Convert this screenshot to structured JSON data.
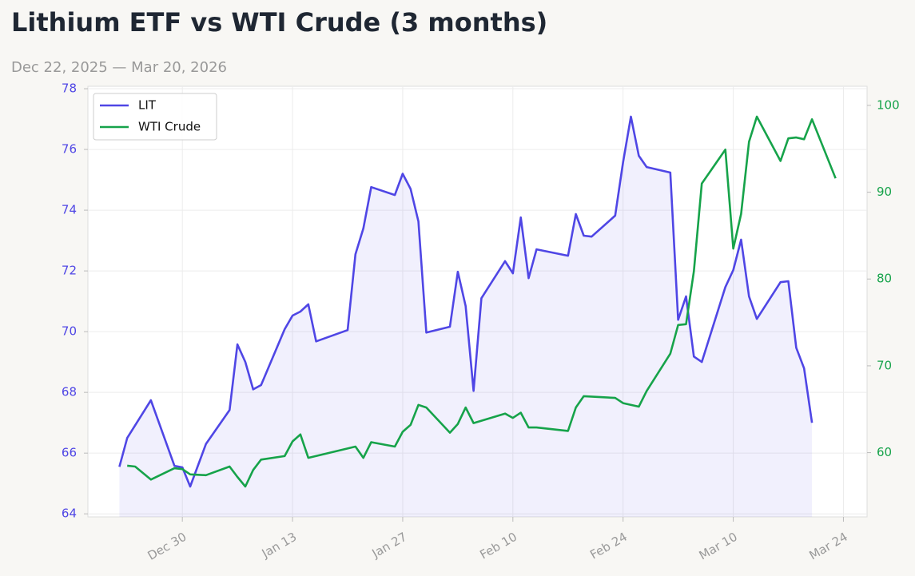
{
  "chart_data": {
    "type": "line",
    "title": "Lithium ETF vs WTI Crude (3 months)",
    "subtitle": "Dec 22, 2025 — Mar 20, 2026",
    "xlim": [
      "2025-12-18",
      "2026-03-27"
    ],
    "xticks": [
      {
        "value": "2025-12-30",
        "label": "Dec 30"
      },
      {
        "value": "2026-01-13",
        "label": "Jan 13"
      },
      {
        "value": "2026-01-27",
        "label": "Jan 27"
      },
      {
        "value": "2026-02-10",
        "label": "Feb 10"
      },
      {
        "value": "2026-02-24",
        "label": "Feb 24"
      },
      {
        "value": "2026-03-10",
        "label": "Mar 10"
      },
      {
        "value": "2026-03-24",
        "label": "Mar 24"
      }
    ],
    "ylim": [
      63.9,
      78.08
    ],
    "yticks": [
      64,
      66,
      68,
      70,
      72,
      74,
      76,
      78
    ],
    "y2lim": [
      52.6,
      102.2
    ],
    "y2ticks": [
      60,
      70,
      80,
      90,
      100
    ],
    "grid": true,
    "legend": "upper left",
    "series": [
      {
        "name": "LIT",
        "color": "#4f46e5",
        "area": true,
        "x": [
          "2025-12-22",
          "2025-12-23",
          "2025-12-26",
          "2025-12-29",
          "2025-12-30",
          "2025-12-31",
          "2026-01-02",
          "2026-01-05",
          "2026-01-06",
          "2026-01-07",
          "2026-01-08",
          "2026-01-09",
          "2026-01-12",
          "2026-01-13",
          "2026-01-14",
          "2026-01-15",
          "2026-01-16",
          "2026-01-20",
          "2026-01-21",
          "2026-01-22",
          "2026-01-23",
          "2026-01-26",
          "2026-01-27",
          "2026-01-28",
          "2026-01-29",
          "2026-01-30",
          "2026-02-02",
          "2026-02-03",
          "2026-02-04",
          "2026-02-05",
          "2026-02-06",
          "2026-02-09",
          "2026-02-10",
          "2026-02-11",
          "2026-02-12",
          "2026-02-13",
          "2026-02-17",
          "2026-02-18",
          "2026-02-19",
          "2026-02-20",
          "2026-02-23",
          "2026-02-24",
          "2026-02-25",
          "2026-02-26",
          "2026-02-27",
          "2026-03-02",
          "2026-03-03",
          "2026-03-04",
          "2026-03-05",
          "2026-03-06",
          "2026-03-09",
          "2026-03-10",
          "2026-03-11",
          "2026-03-12",
          "2026-03-13",
          "2026-03-16",
          "2026-03-17",
          "2026-03-18",
          "2026-03-19",
          "2026-03-20"
        ],
        "values": [
          65.55,
          66.5,
          67.74,
          65.58,
          65.53,
          64.9,
          66.3,
          67.42,
          69.58,
          69.0,
          68.1,
          68.24,
          70.08,
          70.53,
          70.66,
          70.9,
          69.68,
          70.05,
          72.55,
          73.4,
          74.76,
          74.5,
          75.2,
          74.7,
          73.63,
          69.97,
          70.16,
          71.97,
          70.84,
          68.05,
          71.1,
          72.32,
          71.92,
          73.76,
          71.76,
          72.71,
          72.5,
          73.87,
          73.16,
          73.13,
          73.82,
          75.58,
          77.08,
          75.79,
          75.42,
          75.24,
          70.39,
          71.16,
          69.18,
          69.0,
          71.47,
          72.03,
          73.03,
          71.16,
          70.42,
          71.63,
          71.66,
          69.47,
          68.79,
          67.0
        ]
      },
      {
        "name": "WTI Crude",
        "color": "#16a34a",
        "axis": "y2",
        "x": [
          "2025-12-23",
          "2025-12-24",
          "2025-12-26",
          "2025-12-29",
          "2025-12-30",
          "2025-12-31",
          "2026-01-02",
          "2026-01-05",
          "2026-01-06",
          "2026-01-07",
          "2026-01-08",
          "2026-01-09",
          "2026-01-12",
          "2026-01-13",
          "2026-01-14",
          "2026-01-15",
          "2026-01-21",
          "2026-01-22",
          "2026-01-23",
          "2026-01-26",
          "2026-01-27",
          "2026-01-28",
          "2026-01-29",
          "2026-01-30",
          "2026-02-02",
          "2026-02-03",
          "2026-02-04",
          "2026-02-05",
          "2026-02-09",
          "2026-02-10",
          "2026-02-11",
          "2026-02-12",
          "2026-02-13",
          "2026-02-17",
          "2026-02-18",
          "2026-02-19",
          "2026-02-23",
          "2026-02-24",
          "2026-02-26",
          "2026-02-27",
          "2026-03-02",
          "2026-03-03",
          "2026-03-04",
          "2026-03-05",
          "2026-03-06",
          "2026-03-09",
          "2026-03-10",
          "2026-03-11",
          "2026-03-12",
          "2026-03-13",
          "2026-03-16",
          "2026-03-17",
          "2026-03-18",
          "2026-03-19",
          "2026-03-20",
          "2026-03-23"
        ],
        "values": [
          58.5,
          58.4,
          56.9,
          58.2,
          58.1,
          57.5,
          57.4,
          58.4,
          57.2,
          56.1,
          58.0,
          59.2,
          59.6,
          61.3,
          62.1,
          59.4,
          60.7,
          59.4,
          61.2,
          60.7,
          62.4,
          63.2,
          65.5,
          65.2,
          62.3,
          63.3,
          65.2,
          63.4,
          64.5,
          64.0,
          64.6,
          62.9,
          62.9,
          62.5,
          65.2,
          66.5,
          66.3,
          65.7,
          65.3,
          67.1,
          71.4,
          74.7,
          74.8,
          80.9,
          91.0,
          94.9,
          83.5,
          87.5,
          95.8,
          98.7,
          93.6,
          96.2,
          96.3,
          96.1,
          98.4,
          91.6
        ]
      }
    ]
  }
}
